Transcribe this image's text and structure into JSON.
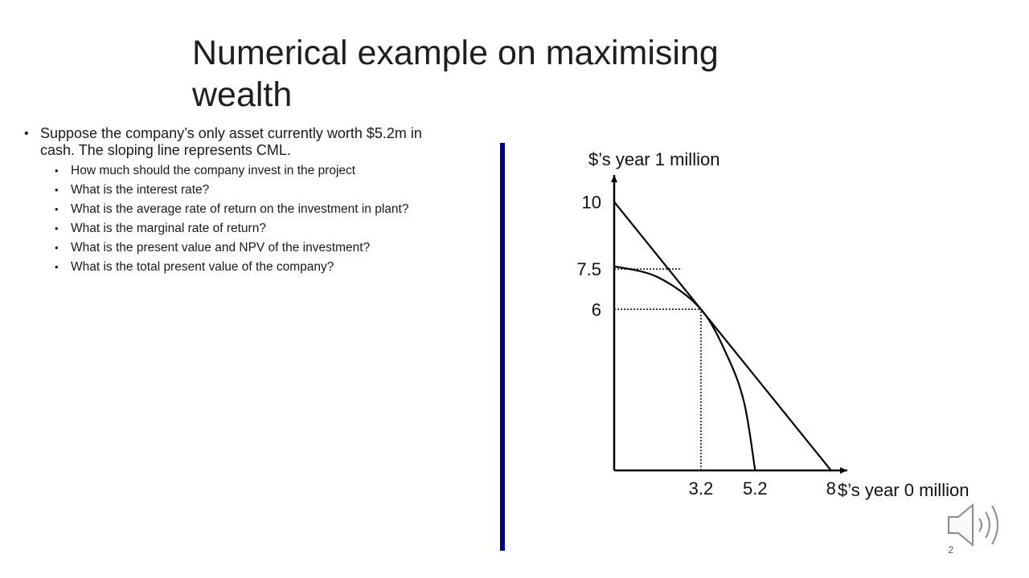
{
  "slide": {
    "title": "Numerical example on maximising wealth",
    "page_number": "2"
  },
  "content": {
    "main_bullet": "Suppose the company’s only asset currently worth $5.2m in cash. The sloping line represents CML.",
    "sub_bullets": [
      "How much should the company invest in the project",
      "What is the interest rate?",
      "What is the average rate of return on the investment in plant?",
      "What is the marginal rate of return?",
      "What is the present value  and NPV of the investment?",
      "What is the total present value of the company?"
    ]
  },
  "colors": {
    "divider": "#000080"
  },
  "icons": {
    "speaker": "speaker-icon"
  },
  "chart_data": {
    "type": "line",
    "xlabel": "$’s year 0 million",
    "ylabel": "$’s year 1 million",
    "xlim": [
      0,
      8.6
    ],
    "ylim": [
      0,
      11
    ],
    "x_ticks": [
      "3.2",
      "5.2",
      "8"
    ],
    "y_ticks": [
      "10",
      "7.5",
      "6"
    ],
    "series": [
      {
        "x": [
          0,
          8
        ],
        "y": [
          10,
          0
        ]
      },
      {
        "x": [
          0,
          1.6,
          3.2,
          4.2,
          4.8,
          5.2
        ],
        "y": [
          7.6,
          7.2,
          6,
          4.2,
          2.5,
          0
        ]
      }
    ],
    "reference_lines": [
      {
        "x": [
          0,
          3.2
        ],
        "y": [
          6,
          6
        ]
      },
      {
        "x": [
          3.2,
          3.2
        ],
        "y": [
          0,
          6
        ]
      },
      {
        "x": [
          0,
          2.5
        ],
        "y": [
          7.5,
          7.5
        ]
      }
    ]
  }
}
